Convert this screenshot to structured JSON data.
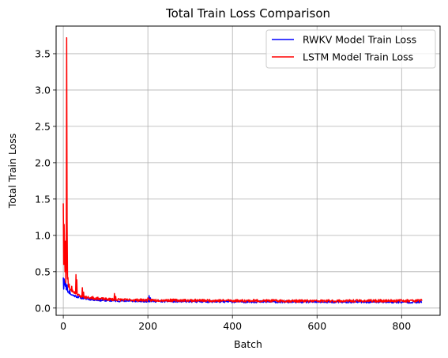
{
  "chart_data": {
    "type": "line",
    "title": "Total Train Loss Comparison",
    "xlabel": "Batch",
    "ylabel": "Total Train Loss",
    "xlim": [
      -17,
      891
    ],
    "ylim": [
      -0.1,
      3.88
    ],
    "x_ticks": [
      0,
      200,
      400,
      600,
      800
    ],
    "x_tick_labels": [
      "0",
      "200",
      "400",
      "600",
      "800"
    ],
    "y_ticks": [
      0.0,
      0.5,
      1.0,
      1.5,
      2.0,
      2.5,
      3.0,
      3.5
    ],
    "y_tick_labels": [
      "0.0",
      "0.5",
      "1.0",
      "1.5",
      "2.0",
      "2.5",
      "3.0",
      "3.5"
    ],
    "grid": true,
    "legend_position": "top-right",
    "series": [
      {
        "name": "RWKV Model Train Loss",
        "color": "#0000ff",
        "generator": {
          "n": 849,
          "anchors": [
            [
              0,
              0.42
            ],
            [
              1,
              0.26
            ],
            [
              3,
              0.36
            ],
            [
              5,
              0.3
            ],
            [
              8,
              0.25
            ],
            [
              12,
              0.22
            ],
            [
              20,
              0.18
            ],
            [
              30,
              0.16
            ],
            [
              50,
              0.13
            ],
            [
              80,
              0.11
            ],
            [
              120,
              0.1
            ],
            [
              200,
              0.095
            ],
            [
              300,
              0.09
            ],
            [
              500,
              0.085
            ],
            [
              700,
              0.083
            ],
            [
              848,
              0.08
            ]
          ],
          "noise": 0.015,
          "spikes": [
            [
              2,
              0.4
            ],
            [
              6,
              0.34
            ],
            [
              9,
              0.32
            ],
            [
              15,
              0.25
            ],
            [
              203,
              0.17
            ],
            [
              206,
              0.14
            ],
            [
              100,
              0.13
            ],
            [
              150,
              0.12
            ]
          ],
          "seed": 11
        }
      },
      {
        "name": "LSTM Model Train Loss",
        "color": "#ff0000",
        "generator": {
          "n": 849,
          "anchors": [
            [
              0,
              1.44
            ],
            [
              1,
              0.6
            ],
            [
              2,
              1.15
            ],
            [
              3,
              0.75
            ],
            [
              4,
              0.5
            ],
            [
              5,
              0.4
            ],
            [
              6,
              0.35
            ],
            [
              7,
              0.5
            ],
            [
              8,
              3.72
            ],
            [
              9,
              1.2
            ],
            [
              10,
              0.4
            ],
            [
              12,
              0.3
            ],
            [
              16,
              0.25
            ],
            [
              25,
              0.22
            ],
            [
              40,
              0.16
            ],
            [
              60,
              0.14
            ],
            [
              100,
              0.12
            ],
            [
              150,
              0.11
            ],
            [
              250,
              0.105
            ],
            [
              400,
              0.1
            ],
            [
              600,
              0.095
            ],
            [
              848,
              0.1
            ]
          ],
          "noise": 0.018,
          "spikes": [
            [
              5,
              0.92
            ],
            [
              7,
              0.52
            ],
            [
              11,
              0.42
            ],
            [
              14,
              0.33
            ],
            [
              20,
              0.3
            ],
            [
              30,
              0.46
            ],
            [
              32,
              0.39
            ],
            [
              45,
              0.28
            ],
            [
              48,
              0.22
            ],
            [
              70,
              0.16
            ],
            [
              121,
              0.2
            ],
            [
              124,
              0.16
            ],
            [
              200,
              0.14
            ],
            [
              340,
              0.11
            ],
            [
              390,
              0.12
            ],
            [
              450,
              0.12
            ],
            [
              700,
              0.115
            ],
            [
              846,
              0.12
            ]
          ],
          "seed": 23
        }
      }
    ]
  }
}
